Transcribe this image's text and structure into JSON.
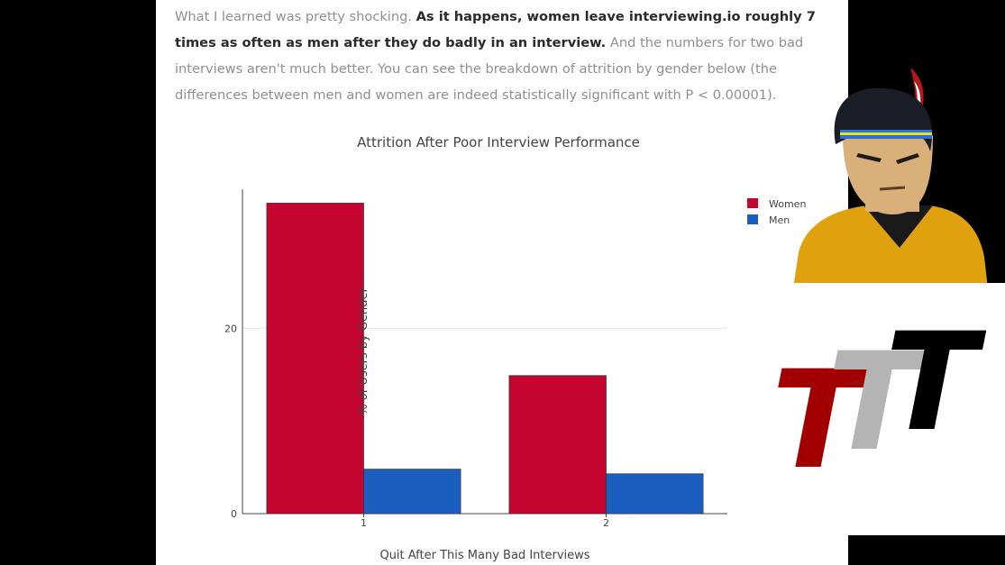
{
  "article": {
    "para_seg1": "What I learned was pretty shocking. ",
    "para_bold": "As it happens, women leave interviewing.io roughly 7 times as often as men after they do badly in an interview.",
    "para_seg2": " And the numbers for two bad interviews aren't much better. You can see the breakdown of attrition by gender below (the differences between men and women are indeed statistically significant with P < 0.00001)."
  },
  "overlay": {
    "logo_text": "TTT",
    "logo_colors": [
      "#a20000",
      "#b4b4b4",
      "#000000"
    ],
    "character_icon": "cartoon-character-with-feather-headband"
  },
  "chart_data": {
    "type": "bar",
    "title": "Attrition After Poor Interview Performance",
    "xlabel": "Quit After This Many Bad Interviews",
    "ylabel": "% of Users by Gender",
    "categories": [
      "1",
      "2"
    ],
    "series": [
      {
        "name": "Women",
        "values": [
          33.5,
          14.9
        ],
        "color": "#c4052f"
      },
      {
        "name": "Men",
        "values": [
          4.8,
          4.3
        ],
        "color": "#1a5fbf"
      }
    ],
    "ylim": [
      0,
      35
    ],
    "yticks": [
      0,
      20
    ],
    "grid": true,
    "legend": "top-right"
  }
}
